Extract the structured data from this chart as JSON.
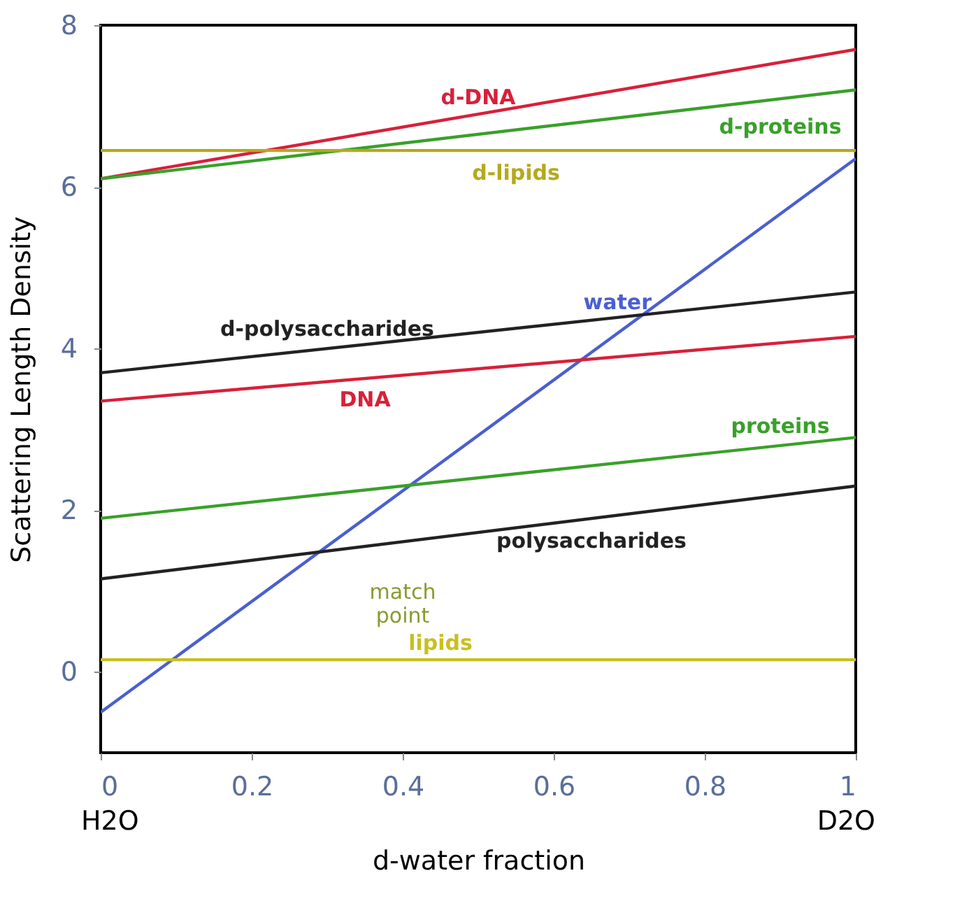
{
  "chart_data": {
    "type": "line",
    "xlabel": "d-water fraction",
    "ylabel": "Scattering Length Density",
    "x": [
      0,
      1
    ],
    "xlim": [
      0,
      1
    ],
    "ylim": [
      -1,
      8
    ],
    "xticks": [
      0,
      0.2,
      0.4,
      0.6,
      0.8,
      1
    ],
    "yticks": [
      0,
      2,
      4,
      6,
      8
    ],
    "grid": false,
    "marker": "none",
    "line_style": "solid",
    "series": [
      {
        "name": "d-DNA",
        "color": "#d8203a",
        "values": [
          6.1,
          7.7
        ]
      },
      {
        "name": "d-proteins",
        "color": "#3aa02a",
        "values": [
          6.1,
          7.2
        ]
      },
      {
        "name": "d-lipids",
        "color": "#b5a91c",
        "values": [
          6.45,
          6.45
        ]
      },
      {
        "name": "water",
        "color": "#4a5fd0",
        "values": [
          -0.5,
          6.35
        ]
      },
      {
        "name": "d-polysaccharides",
        "color": "#222222",
        "values": [
          3.7,
          4.7
        ]
      },
      {
        "name": "DNA",
        "color": "#d8203a",
        "values": [
          3.35,
          4.15
        ]
      },
      {
        "name": "proteins",
        "color": "#3aa02a",
        "values": [
          1.9,
          2.9
        ]
      },
      {
        "name": "polysaccharides",
        "color": "#222222",
        "values": [
          1.15,
          2.3
        ]
      },
      {
        "name": "lipids",
        "color": "#c8c020",
        "values": [
          0.15,
          0.15
        ]
      }
    ],
    "annotations": [
      "H2O",
      "D2O",
      "match point"
    ]
  }
}
